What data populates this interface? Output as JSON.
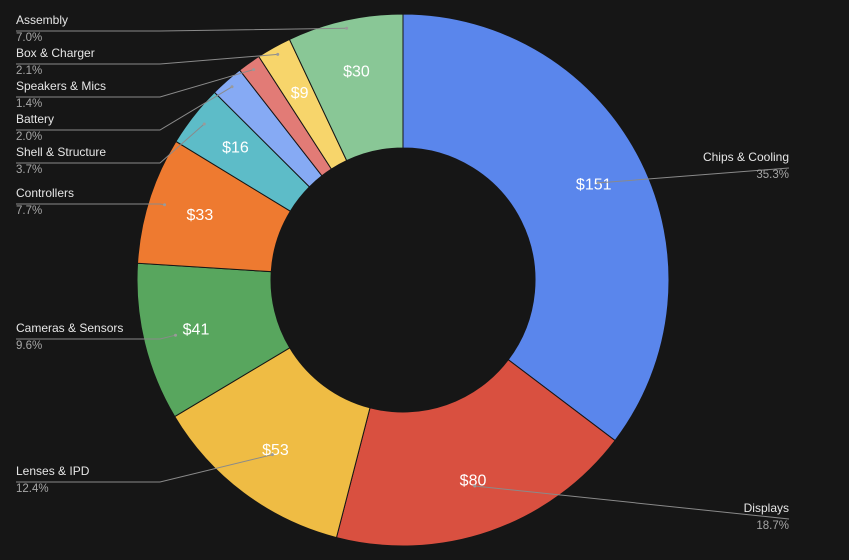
{
  "chart_data": {
    "type": "pie",
    "donut": true,
    "title": "",
    "start_angle_deg": 0,
    "direction": "clockwise",
    "slices": [
      {
        "name": "Chips & Cooling",
        "value": 151,
        "label": "$151",
        "percent": "35.3%",
        "color": "#5a86ec"
      },
      {
        "name": "Displays",
        "value": 80,
        "label": "$80",
        "percent": "18.7%",
        "color": "#d95040"
      },
      {
        "name": "Lenses & IPD",
        "value": 53,
        "label": "$53",
        "percent": "12.4%",
        "color": "#efbc44"
      },
      {
        "name": "Cameras & Sensors",
        "value": 41,
        "label": "$41",
        "percent": "9.6%",
        "color": "#58a65e"
      },
      {
        "name": "Controllers",
        "value": 33,
        "label": "$33",
        "percent": "7.7%",
        "color": "#ee7a30"
      },
      {
        "name": "Shell & Structure",
        "value": 16,
        "label": "$16",
        "percent": "3.7%",
        "color": "#5dbcc8"
      },
      {
        "name": "Battery",
        "value": 8.6,
        "label": "",
        "percent": "2.0%",
        "color": "#86aaf4"
      },
      {
        "name": "Speakers & Mics",
        "value": 6,
        "label": "",
        "percent": "1.4%",
        "color": "#e27b76"
      },
      {
        "name": "Box & Charger",
        "value": 9,
        "label": "$9",
        "percent": "2.1%",
        "color": "#f7d56b"
      },
      {
        "name": "Assembly",
        "value": 30,
        "label": "$30",
        "percent": "7.0%",
        "color": "#89c796"
      }
    ],
    "legend": "leader-labels"
  }
}
